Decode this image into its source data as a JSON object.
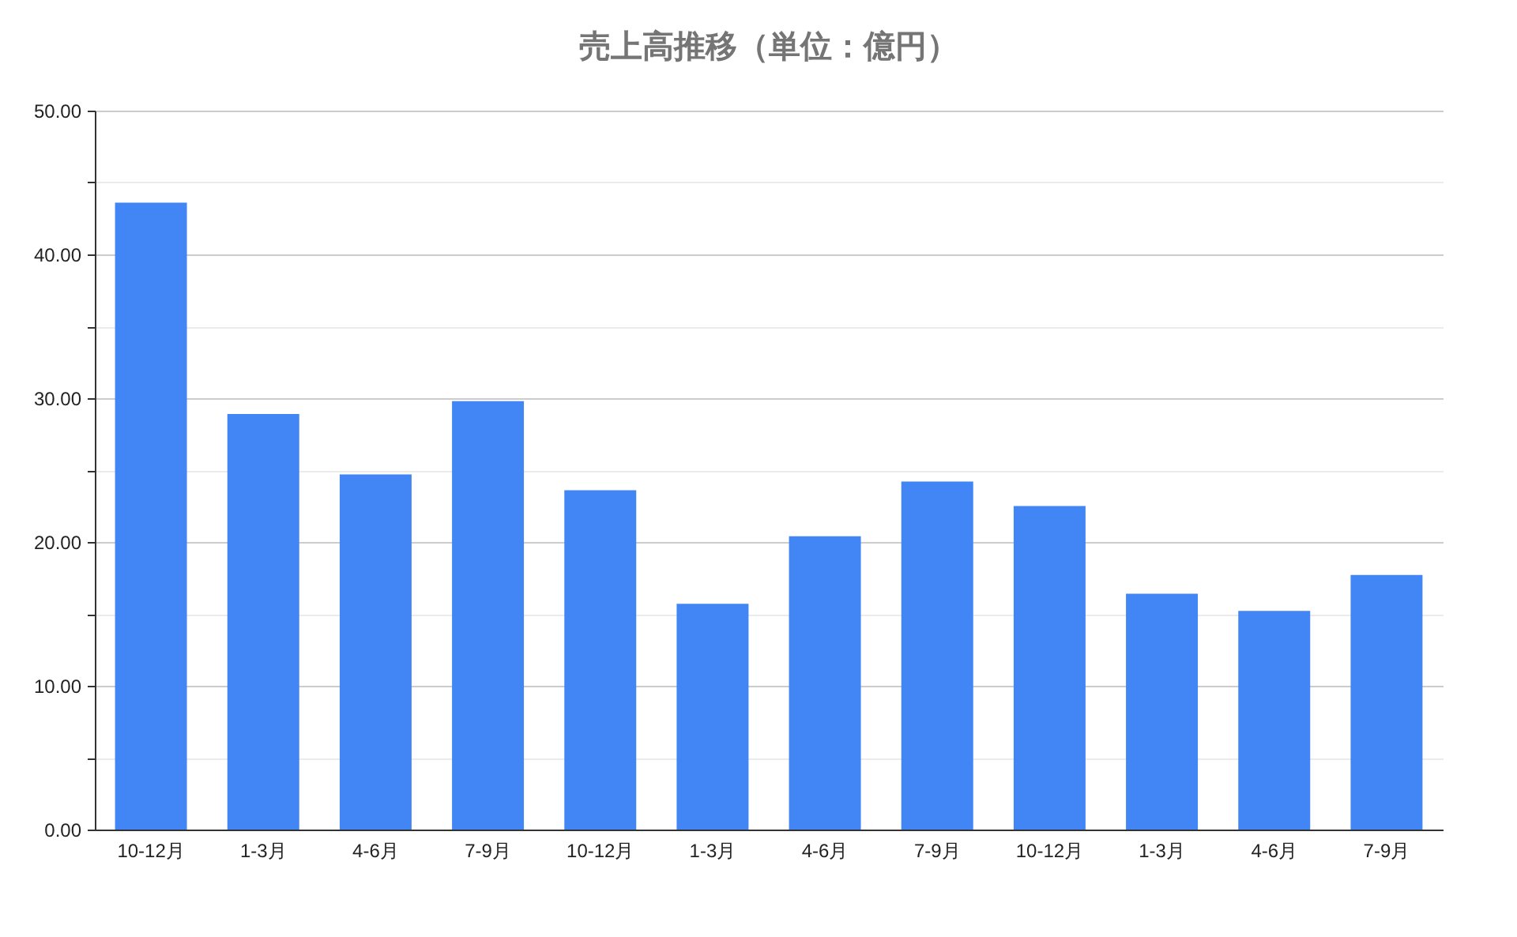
{
  "chart_data": {
    "type": "bar",
    "title": "売上高推移（単位：億円）",
    "categories": [
      "10-12月",
      "1-3月",
      "4-6月",
      "7-9月",
      "10-12月",
      "1-3月",
      "4-6月",
      "7-9月",
      "10-12月",
      "1-3月",
      "4-6月",
      "7-9月"
    ],
    "values": [
      43.6,
      28.9,
      24.7,
      29.8,
      23.6,
      15.7,
      20.4,
      24.2,
      22.5,
      16.4,
      15.2,
      17.7
    ],
    "color": "#4285f4",
    "ylim": [
      0,
      50
    ],
    "yticks": [
      {
        "value": 0,
        "label": "0.00"
      },
      {
        "value": 5,
        "label": null
      },
      {
        "value": 10,
        "label": "10.00"
      },
      {
        "value": 15,
        "label": null
      },
      {
        "value": 20,
        "label": "20.00"
      },
      {
        "value": 25,
        "label": null
      },
      {
        "value": 30,
        "label": "30.00"
      },
      {
        "value": 35,
        "label": null
      },
      {
        "value": 40,
        "label": "40.00"
      },
      {
        "value": 45,
        "label": null
      },
      {
        "value": 50,
        "label": "50.00"
      }
    ],
    "grid": "y"
  }
}
